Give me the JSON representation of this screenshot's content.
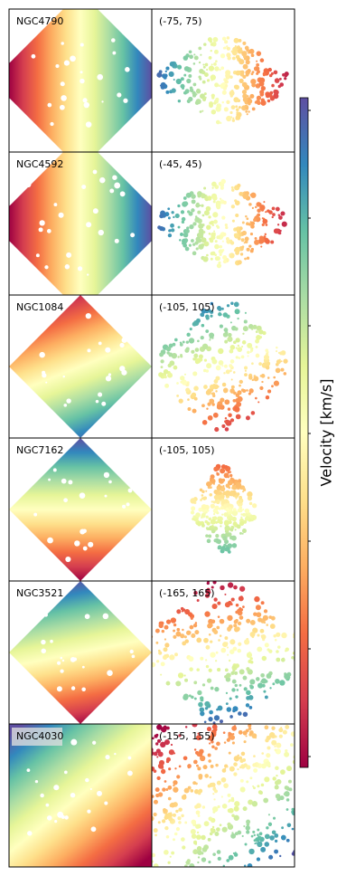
{
  "panels": [
    {
      "name": "NGC4790",
      "range": "(-75, 75)"
    },
    {
      "name": "NGC4592",
      "range": "(-45, 45)"
    },
    {
      "name": "NGC1084",
      "range": "(-105, 105)"
    },
    {
      "name": "NGC7162",
      "range": "(-105, 105)"
    },
    {
      "name": "NGC3521",
      "range": "(-165, 165)"
    },
    {
      "name": "NGC4030",
      "range": "(-155, 155)"
    }
  ],
  "colorbar": {
    "label": "Velocity [km/s]"
  }
}
